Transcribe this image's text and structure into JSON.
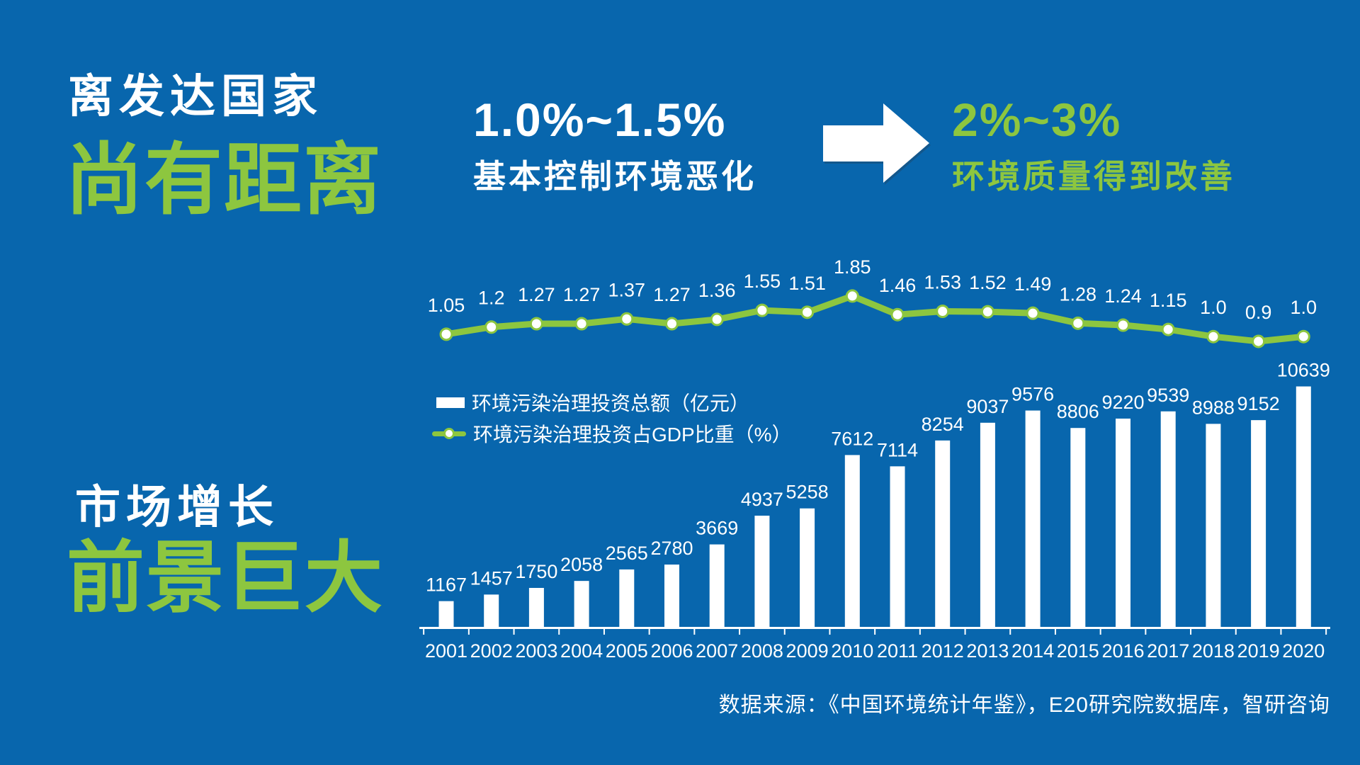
{
  "page": {
    "background_color": "#0866AD",
    "accent_green": "#8DC63F",
    "text_white": "#FFFFFF"
  },
  "left_panel": {
    "top_heading": {
      "line1": "离发达国家",
      "line2": "尚有距离"
    },
    "bottom_heading": {
      "line1": "市场增长",
      "line2": "前景巨大"
    }
  },
  "comparison": {
    "before": {
      "value": "1.0%~1.5%",
      "caption": "基本控制环境恶化"
    },
    "arrow_icon": "right-arrow",
    "after": {
      "value": "2%~3%",
      "caption": "环境质量得到改善"
    }
  },
  "chart_data": {
    "type": "bar+line",
    "categories": [
      "2001",
      "2002",
      "2003",
      "2004",
      "2005",
      "2006",
      "2007",
      "2008",
      "2009",
      "2010",
      "2011",
      "2012",
      "2013",
      "2014",
      "2015",
      "2016",
      "2017",
      "2018",
      "2019",
      "2020"
    ],
    "series": [
      {
        "name": "环境污染治理投资总额（亿元）",
        "type": "bar",
        "color": "#FFFFFF",
        "values": [
          1167,
          1457,
          1750,
          2058,
          2565,
          2780,
          3669,
          4937,
          5258,
          7612,
          7114,
          8254,
          9037,
          9576,
          8806,
          9220,
          9539,
          8988,
          9152,
          10639
        ]
      },
      {
        "name": "环境污染治理投资占GDP比重（%）",
        "type": "line",
        "color": "#8DC63F",
        "values": [
          1.05,
          1.2,
          1.27,
          1.27,
          1.37,
          1.27,
          1.36,
          1.55,
          1.51,
          1.85,
          1.46,
          1.53,
          1.52,
          1.49,
          1.28,
          1.24,
          1.15,
          1.0,
          0.9,
          1.0
        ],
        "labels": [
          "1.05",
          "1.2",
          "1.27",
          "1.27",
          "1.37",
          "1.27",
          "1.36",
          "1.55",
          "1.51",
          "1.85",
          "1.46",
          "1.53",
          "1.52",
          "1.49",
          "1.28",
          "1.24",
          "1.15",
          "1.0",
          "0.9",
          "1.0"
        ]
      }
    ],
    "legend_position": "middle-left",
    "grid": false,
    "bar_axis_range": [
      0,
      11000
    ],
    "line_axis_range": [
      0.9,
      1.85
    ]
  },
  "source_note": "数据来源：《中国环境统计年鉴》，E20研究院数据库，智研咨询"
}
